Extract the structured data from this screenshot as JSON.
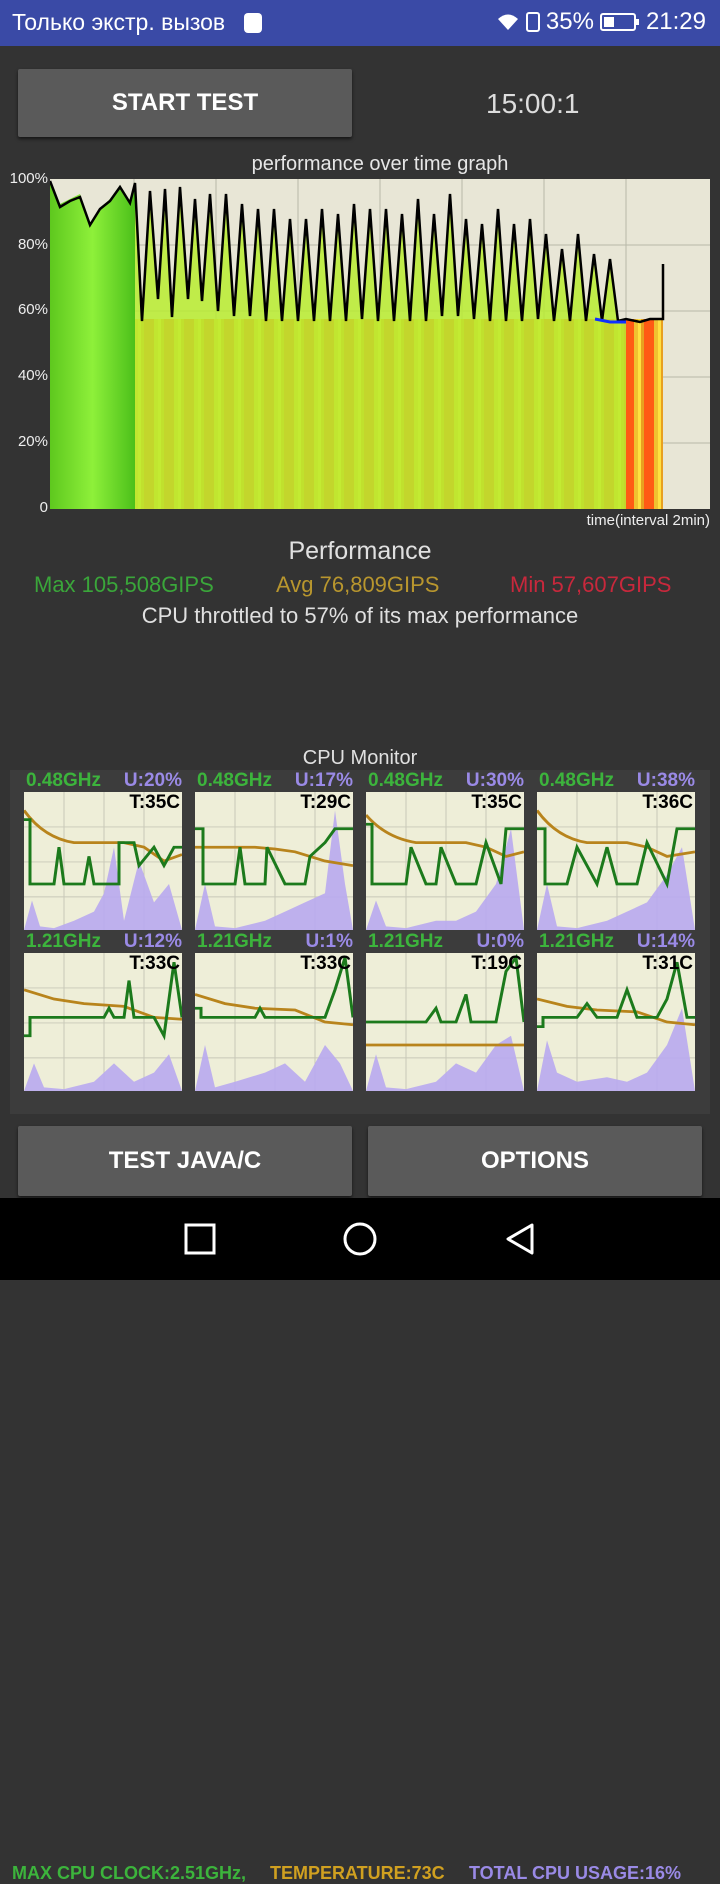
{
  "status_bar": {
    "carrier": "Только экстр. вызов",
    "battery": "35%",
    "time": "21:29"
  },
  "controls": {
    "start_test": "START TEST",
    "timer": "15:00:1",
    "test_java_c": "TEST JAVA/C",
    "options": "OPTIONS"
  },
  "graph": {
    "title": "performance over time graph",
    "y_labels": [
      "100%",
      "80%",
      "60%",
      "40%",
      "20%",
      "0"
    ],
    "x_label": "time(interval 2min)"
  },
  "performance": {
    "title": "Performance",
    "max": "Max 105,508GIPS",
    "avg": "Avg 76,809GIPS",
    "min": "Min 57,607GIPS",
    "throttle_text": "CPU throttled to 57% of its max performance"
  },
  "cpu_monitor": {
    "title": "CPU Monitor",
    "cores": [
      {
        "freq": "0.48GHz",
        "usage": "U:20%",
        "temp": "T:35C"
      },
      {
        "freq": "0.48GHz",
        "usage": "U:17%",
        "temp": "T:29C"
      },
      {
        "freq": "0.48GHz",
        "usage": "U:30%",
        "temp": "T:35C"
      },
      {
        "freq": "0.48GHz",
        "usage": "U:38%",
        "temp": "T:36C"
      },
      {
        "freq": "1.21GHz",
        "usage": "U:12%",
        "temp": "T:33C"
      },
      {
        "freq": "1.21GHz",
        "usage": "U:1%",
        "temp": "T:33C"
      },
      {
        "freq": "1.21GHz",
        "usage": "U:0%",
        "temp": "T:19C"
      },
      {
        "freq": "1.21GHz",
        "usage": "U:14%",
        "temp": "T:31C"
      }
    ],
    "max_clock": "MAX CPU CLOCK:2.51GHz,",
    "temperature": "TEMPERATURE:73C",
    "total_usage": "TOTAL CPU USAGE:16%"
  },
  "colors": {
    "status_bar": "#3a4aa6",
    "max": "#3aa63a",
    "avg": "#b8962e",
    "min": "#c8283c",
    "usage": "#9a8ae6"
  },
  "icons": [
    "wifi-icon",
    "battery-icon",
    "nav-back-icon",
    "nav-home-icon",
    "nav-recents-icon"
  ]
}
